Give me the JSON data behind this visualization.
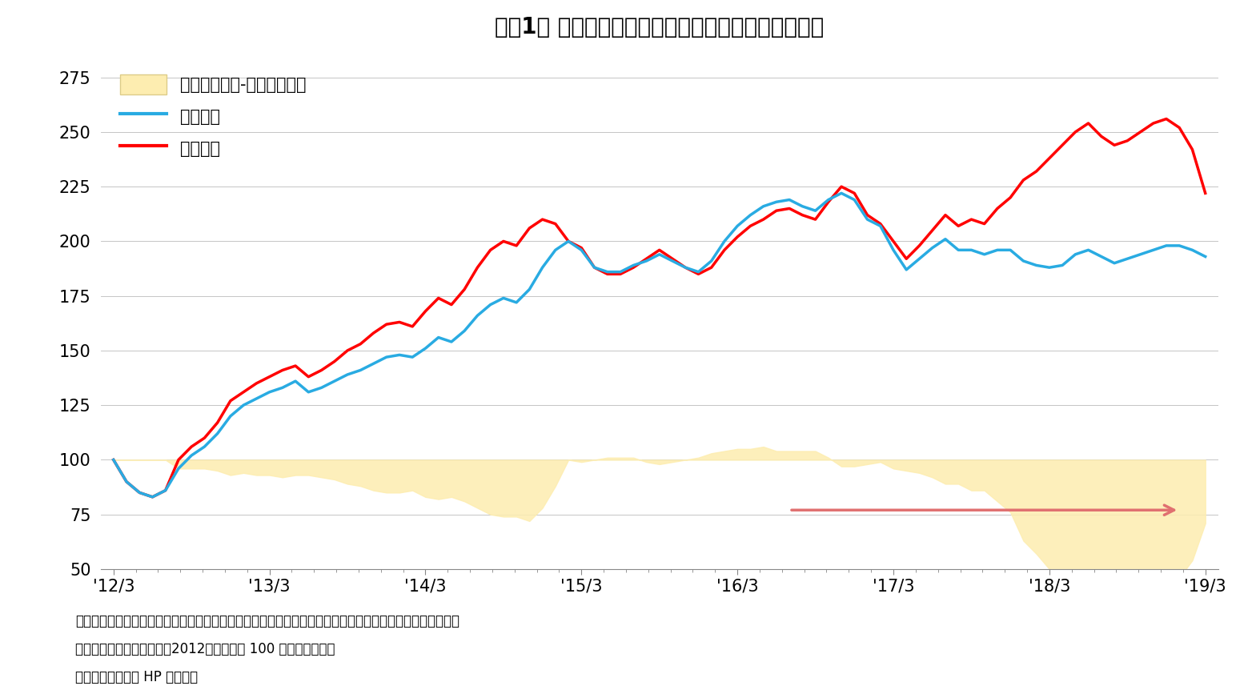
{
  "title": "『図1』 ラッセル野村スタイル・インデックスの推移",
  "title_fontsize": 20,
  "background_color": "#ffffff",
  "ylim": [
    50,
    285
  ],
  "yticks": [
    50,
    75,
    100,
    125,
    150,
    175,
    200,
    225,
    250,
    275
  ],
  "xlabel_ticks": [
    "'12/3",
    "'13/3",
    "'14/3",
    "'15/3",
    "'16/3",
    "'17/3",
    "'18/3",
    "'19/3"
  ],
  "note_line1": "（注）バリュー：トータル・マーケット・バリュー指数、グロース：トータル・マーケット・グロース指数",
  "note_line2": "　　　全て配当込み指数、2012年３月末を 100 として基準化。",
  "note_line3": "（資料）野村証券 HP より作成",
  "legend_area_label": "「バリュー」-「グロース」",
  "legend_value_label": "バリュー",
  "legend_growth_label": "グロース",
  "value_color": "#29ABE2",
  "growth_color": "#FF0000",
  "area_fill_color": "#FDEDB0",
  "area_fill_alpha": 0.85,
  "line_width": 2.5,
  "value_data": [
    100,
    90,
    85,
    83,
    86,
    96,
    102,
    106,
    112,
    120,
    125,
    128,
    131,
    133,
    136,
    131,
    133,
    136,
    139,
    141,
    144,
    147,
    148,
    147,
    151,
    156,
    154,
    159,
    166,
    171,
    174,
    172,
    178,
    188,
    196,
    200,
    196,
    188,
    186,
    186,
    189,
    191,
    194,
    191,
    188,
    186,
    191,
    200,
    207,
    212,
    216,
    218,
    219,
    216,
    214,
    219,
    222,
    219,
    210,
    207,
    196,
    187,
    192,
    197,
    201,
    196,
    196,
    194,
    196,
    196,
    191,
    189,
    188,
    189,
    194,
    196,
    193,
    190,
    192,
    194,
    196,
    198,
    198,
    196,
    193
  ],
  "growth_data": [
    100,
    90,
    85,
    83,
    86,
    100,
    106,
    110,
    117,
    127,
    131,
    135,
    138,
    141,
    143,
    138,
    141,
    145,
    150,
    153,
    158,
    162,
    163,
    161,
    168,
    174,
    171,
    178,
    188,
    196,
    200,
    198,
    206,
    210,
    208,
    200,
    197,
    188,
    185,
    185,
    188,
    192,
    196,
    192,
    188,
    185,
    188,
    196,
    202,
    207,
    210,
    214,
    215,
    212,
    210,
    218,
    225,
    222,
    212,
    208,
    200,
    192,
    198,
    205,
    212,
    207,
    210,
    208,
    215,
    220,
    228,
    232,
    238,
    244,
    250,
    254,
    248,
    244,
    246,
    250,
    254,
    256,
    252,
    242,
    222
  ],
  "n_points": 85,
  "arrow_color": "#E07070"
}
